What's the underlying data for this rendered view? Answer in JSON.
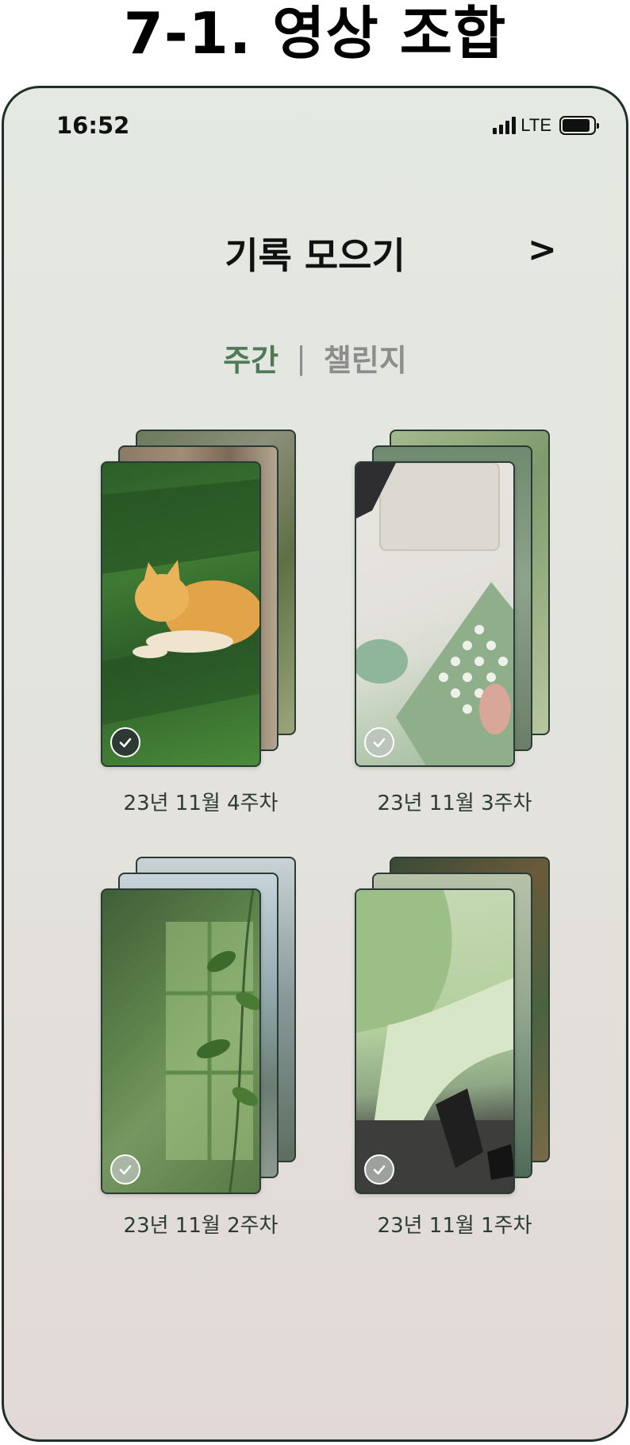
{
  "page_heading": "7-1. 영상 조합",
  "status_bar": {
    "time": "16:52",
    "network": "LTE"
  },
  "header": {
    "title": "기록 모으기",
    "next_label": ">"
  },
  "tabs": {
    "weekly": "주간",
    "separator": "|",
    "challenge": "챌린지",
    "active": "weekly"
  },
  "albums": [
    {
      "label": "23년 11월 4주차",
      "selected": true
    },
    {
      "label": "23년 11월 3주차",
      "selected": false
    },
    {
      "label": "23년 11월 2주차",
      "selected": false
    },
    {
      "label": "23년 11월 1주차",
      "selected": false
    }
  ],
  "colors": {
    "active_tab": "#4f7a58",
    "inactive_tab": "#8d8d8d",
    "frame_border": "#1f2f2c"
  }
}
